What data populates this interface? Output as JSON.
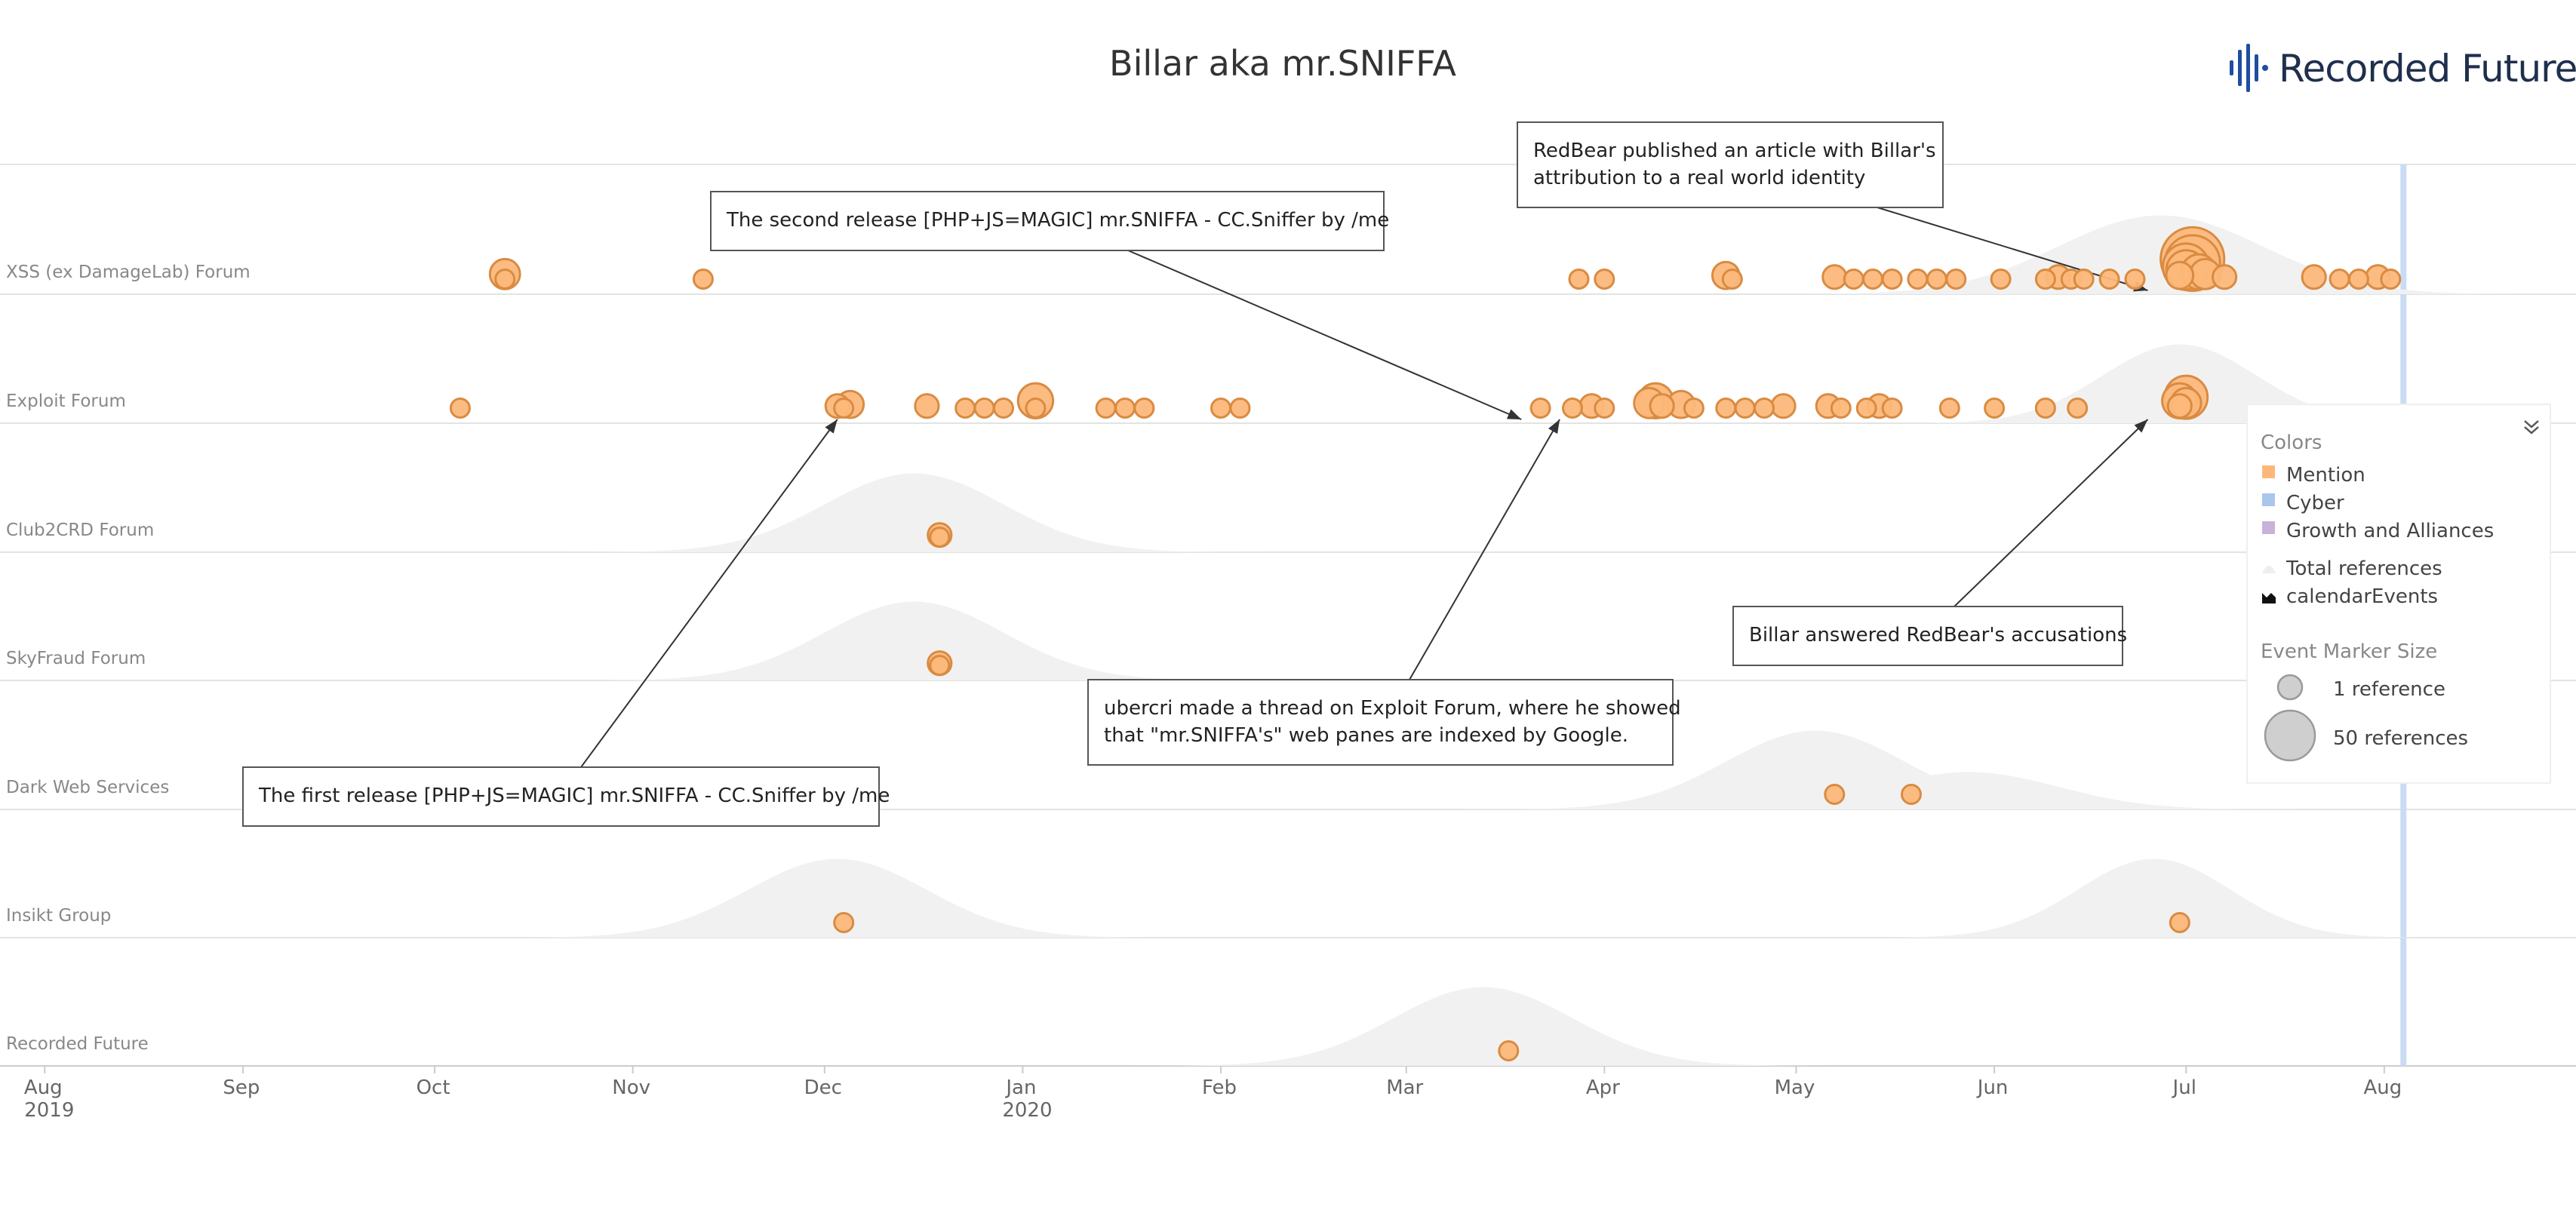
{
  "chart_data": {
    "type": "scatter",
    "title": "Billar aka mr.SNIFFA",
    "logo_text": "Recorded Future",
    "x_axis": {
      "type": "date",
      "range": [
        "2019-07-25",
        "2020-08-31"
      ],
      "ticks": [
        {
          "date": "2019-08-01",
          "label": "Aug",
          "year": "2019"
        },
        {
          "date": "2019-09-01",
          "label": "Sep"
        },
        {
          "date": "2019-10-01",
          "label": "Oct"
        },
        {
          "date": "2019-11-01",
          "label": "Nov"
        },
        {
          "date": "2019-12-01",
          "label": "Dec"
        },
        {
          "date": "2020-01-01",
          "label": "Jan",
          "year": "2020"
        },
        {
          "date": "2020-02-01",
          "label": "Feb"
        },
        {
          "date": "2020-03-01",
          "label": "Mar"
        },
        {
          "date": "2020-04-01",
          "label": "Apr"
        },
        {
          "date": "2020-05-01",
          "label": "May"
        },
        {
          "date": "2020-06-01",
          "label": "Jun"
        },
        {
          "date": "2020-07-01",
          "label": "Jul"
        },
        {
          "date": "2020-08-01",
          "label": "Aug"
        }
      ]
    },
    "today_marker": "2020-08-04",
    "rows": [
      {
        "name": "XSS (ex DamageLab) Forum",
        "density": [
          [
            "2020-06-27",
            0.95,
            16
          ]
        ],
        "events": [
          [
            "2019-10-12",
            1
          ],
          [
            "2019-10-12",
            4
          ],
          [
            "2019-11-12",
            1
          ],
          [
            "2020-03-28",
            1
          ],
          [
            "2020-04-01",
            1
          ],
          [
            "2020-04-20",
            3
          ],
          [
            "2020-04-21",
            1
          ],
          [
            "2020-05-07",
            2
          ],
          [
            "2020-05-10",
            1
          ],
          [
            "2020-05-13",
            1
          ],
          [
            "2020-05-16",
            1
          ],
          [
            "2020-05-20",
            1
          ],
          [
            "2020-05-23",
            1
          ],
          [
            "2020-05-26",
            1
          ],
          [
            "2020-06-02",
            1
          ],
          [
            "2020-06-09",
            1
          ],
          [
            "2020-06-11",
            2
          ],
          [
            "2020-06-13",
            1
          ],
          [
            "2020-06-15",
            1
          ],
          [
            "2020-06-19",
            1
          ],
          [
            "2020-06-23",
            1
          ],
          [
            "2020-06-30",
            3
          ],
          [
            "2020-07-01",
            8
          ],
          [
            "2020-07-02",
            25
          ],
          [
            "2020-07-02",
            18
          ],
          [
            "2020-07-01",
            12
          ],
          [
            "2020-07-03",
            6
          ],
          [
            "2020-07-04",
            4
          ],
          [
            "2020-07-07",
            2
          ],
          [
            "2020-07-21",
            2
          ],
          [
            "2020-07-25",
            1
          ],
          [
            "2020-07-28",
            1
          ],
          [
            "2020-07-31",
            2
          ],
          [
            "2020-08-02",
            1
          ]
        ]
      },
      {
        "name": "Exploit Forum",
        "density": [
          [
            "2020-06-30",
            0.95,
            12
          ]
        ],
        "events": [
          [
            "2019-10-05",
            1
          ],
          [
            "2019-12-03",
            2
          ],
          [
            "2019-12-04",
            1
          ],
          [
            "2019-12-05",
            3
          ],
          [
            "2019-12-17",
            2
          ],
          [
            "2019-12-23",
            1
          ],
          [
            "2019-12-26",
            1
          ],
          [
            "2019-12-29",
            1
          ],
          [
            "2020-01-03",
            1
          ],
          [
            "2020-01-03",
            6
          ],
          [
            "2020-01-14",
            1
          ],
          [
            "2020-01-17",
            1
          ],
          [
            "2020-01-20",
            1
          ],
          [
            "2020-02-01",
            1
          ],
          [
            "2020-02-04",
            1
          ],
          [
            "2020-03-22",
            1
          ],
          [
            "2020-03-27",
            1
          ],
          [
            "2020-03-30",
            2
          ],
          [
            "2020-04-01",
            1
          ],
          [
            "2020-04-08",
            4
          ],
          [
            "2020-04-09",
            6
          ],
          [
            "2020-04-10",
            2
          ],
          [
            "2020-04-13",
            3
          ],
          [
            "2020-04-15",
            1
          ],
          [
            "2020-04-20",
            1
          ],
          [
            "2020-04-23",
            1
          ],
          [
            "2020-04-26",
            1
          ],
          [
            "2020-04-29",
            2
          ],
          [
            "2020-05-06",
            2
          ],
          [
            "2020-05-08",
            1
          ],
          [
            "2020-05-12",
            1
          ],
          [
            "2020-05-14",
            2
          ],
          [
            "2020-05-16",
            1
          ],
          [
            "2020-05-25",
            1
          ],
          [
            "2020-06-01",
            1
          ],
          [
            "2020-06-09",
            1
          ],
          [
            "2020-06-14",
            1
          ],
          [
            "2020-06-30",
            2
          ],
          [
            "2020-06-30",
            6
          ],
          [
            "2020-07-01",
            10
          ],
          [
            "2020-07-01",
            4
          ]
        ]
      },
      {
        "name": "Club2CRD Forum",
        "density": [
          [
            "2019-12-15",
            0.95,
            14
          ]
        ],
        "events": [
          [
            "2019-12-19",
            1
          ],
          [
            "2019-12-19",
            2
          ]
        ]
      },
      {
        "name": "SkyFraud Forum",
        "density": [
          [
            "2019-12-15",
            0.95,
            14
          ]
        ],
        "events": [
          [
            "2019-12-19",
            1
          ],
          [
            "2019-12-19",
            2
          ]
        ]
      },
      {
        "name": "Dark Web Services",
        "density": [
          [
            "2020-05-04",
            0.95,
            14
          ],
          [
            "2020-05-28",
            0.45,
            14
          ]
        ],
        "events": [
          [
            "2020-05-07",
            1
          ],
          [
            "2020-05-19",
            1
          ]
        ]
      },
      {
        "name": "Insikt Group",
        "density": [
          [
            "2019-12-03",
            0.95,
            14
          ],
          [
            "2020-06-26",
            0.95,
            12
          ]
        ],
        "events": [
          [
            "2019-12-04",
            1
          ],
          [
            "2020-06-30",
            1
          ]
        ]
      },
      {
        "name": "Recorded Future",
        "density": [
          [
            "2020-03-13",
            0.95,
            14
          ]
        ],
        "events": [
          [
            "2020-03-17",
            1
          ]
        ]
      }
    ],
    "annotations": [
      {
        "lines": [
          "The first release [PHP+JS=MAGIC] mr.SNIFFA - CC.Sniffer by /me"
        ],
        "target_row": 1,
        "target_date": "2019-12-03"
      },
      {
        "lines": [
          "The second release [PHP+JS=MAGIC] mr.SNIFFA - CC.Sniffer by /me"
        ],
        "target_row": 1,
        "target_date": "2020-03-19"
      },
      {
        "lines": [
          "RedBear published an article with Billar's",
          "attribution to a real world identity"
        ],
        "target_row": 0,
        "target_date": "2020-06-25"
      },
      {
        "lines": [
          "ubercri made a thread on Exploit Forum, where he showed",
          "that \"mr.SNIFFA's\" web panes are indexed by Google."
        ],
        "target_row": 1,
        "target_date": "2020-03-25"
      },
      {
        "lines": [
          "Billar answered RedBear's accusations"
        ],
        "target_row": 1,
        "target_date": "2020-06-25"
      }
    ],
    "legend": {
      "colors_heading": "Colors",
      "items": [
        {
          "label": "Mention",
          "color": "#fcb87a"
        },
        {
          "label": "Cyber",
          "color": "#a9c6ec"
        },
        {
          "label": "Growth and Alliances",
          "color": "#c9b1d9"
        }
      ],
      "extra_items": [
        {
          "label": "Total references",
          "icon": "area-icon"
        },
        {
          "label": "calendarEvents",
          "icon": "calendar-icon"
        }
      ],
      "size_heading": "Event Marker Size",
      "sizes": [
        {
          "label": "1 reference",
          "refs": 1
        },
        {
          "label": "50 references",
          "refs": 50
        }
      ]
    },
    "colors": {
      "mention_fill": "#fcb87a",
      "mention_stroke": "#d98b42",
      "density_fill": "#f1f1f1",
      "gridline": "#e3e3e3",
      "today_line": "#c9dcf3"
    }
  }
}
